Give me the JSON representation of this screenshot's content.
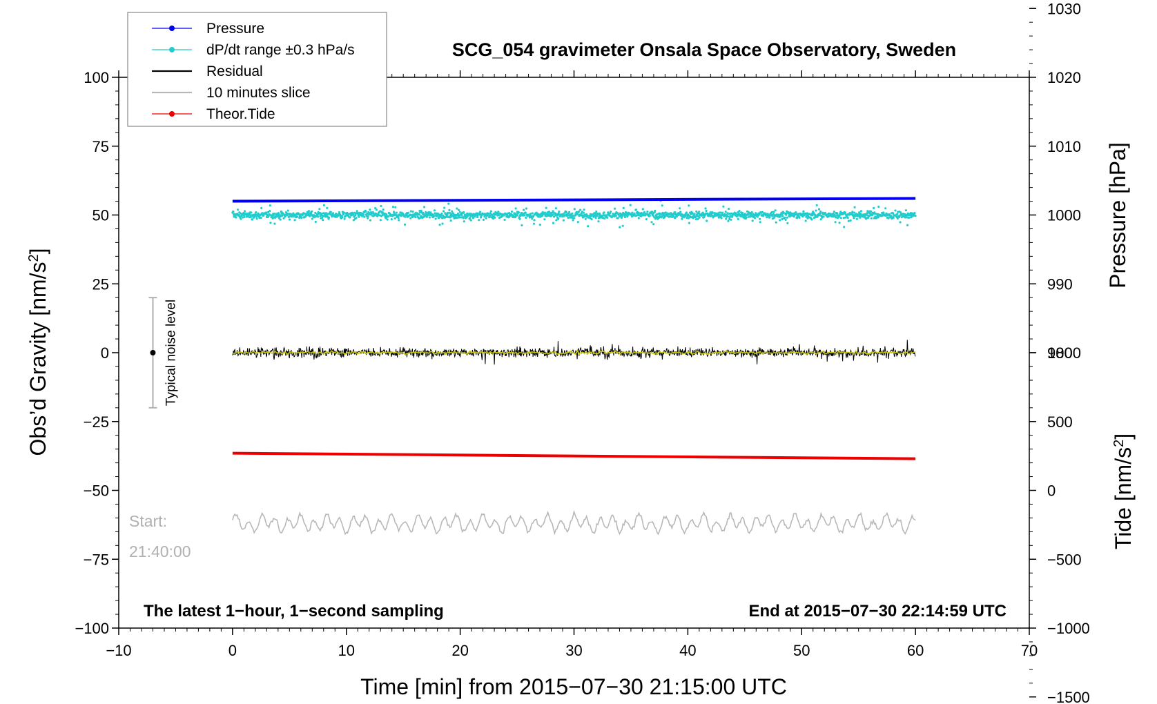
{
  "chart_data": {
    "type": "line",
    "title": "SCG_054 gravimeter Onsala Space Observatory, Sweden",
    "xlabel": "Time [min] from 2015−07−30 21:15:00 UTC",
    "ylabel_left": "Obs’d Gravity [nm/s²]",
    "ylabel_right_top": "Pressure [hPa]",
    "ylabel_right_bottom": "Tide [nm/s²]",
    "xlim": [
      -10,
      70
    ],
    "ylim_left": [
      -100,
      100
    ],
    "x_ticks": [
      "−10",
      "0",
      "10",
      "20",
      "30",
      "40",
      "50",
      "60",
      "70"
    ],
    "x_tick_values": [
      -10,
      0,
      10,
      20,
      30,
      40,
      50,
      60,
      70
    ],
    "y_left_ticks": [
      "100",
      "75",
      "50",
      "25",
      "0",
      "−25",
      "−50",
      "−75",
      "−100"
    ],
    "y_left_tick_values": [
      100,
      75,
      50,
      25,
      0,
      -25,
      -50,
      -75,
      -100
    ],
    "pressure_axis": {
      "ticks": [
        "1030",
        "1020",
        "1010",
        "1000",
        "990",
        "980"
      ],
      "tick_values": [
        1030,
        1020,
        1010,
        1000,
        990,
        980
      ],
      "left_value_at_1000": 50,
      "left_units_per_hPa": 2.5
    },
    "tide_axis": {
      "ticks": [
        "1000",
        "500",
        "0",
        "−500",
        "−1000",
        "−1500"
      ],
      "tick_values": [
        1000,
        500,
        0,
        -500,
        -1000,
        -1500
      ],
      "left_value_at_0": -50,
      "left_units_per_nms2": 0.05
    },
    "legend": {
      "position": "top-left",
      "items": [
        {
          "label": "Pressure",
          "color": "#0000ee",
          "style": "line-dot"
        },
        {
          "label": "dP/dt range ±0.3 hPa/s",
          "color": "#22cccc",
          "style": "line-dot"
        },
        {
          "label": "Residual",
          "color": "#000000",
          "style": "line"
        },
        {
          "label": "10 minutes slice",
          "color": "#b8b8b8",
          "style": "line"
        },
        {
          "label": "Theor.Tide",
          "color": "#ee0000",
          "style": "line-dot"
        }
      ]
    },
    "series": [
      {
        "name": "Pressure",
        "color": "#0000ee",
        "x_range": [
          0,
          60
        ],
        "y_left_range": [
          55.0,
          56.0
        ],
        "pressure_hPa": [
          1002.0,
          1002.4
        ]
      },
      {
        "name": "dP/dt range ±0.3 hPa/s",
        "color": "#22cccc",
        "x_range": [
          0,
          60
        ],
        "y_left_center": 50,
        "y_left_spread": 4
      },
      {
        "name": "Residual",
        "color": "#000000",
        "x_range": [
          0,
          60
        ],
        "y_left_center": 0,
        "y_left_spread": 3
      },
      {
        "name": "Residual (smoothed)",
        "color": "#c8c800",
        "x_range": [
          0,
          60
        ],
        "y_left_center": 0
      },
      {
        "name": "Theor.Tide",
        "color": "#ee0000",
        "x_range": [
          0,
          60
        ],
        "y_left_range": [
          -36.5,
          -38.5
        ],
        "tide_nms2": [
          270,
          230
        ]
      },
      {
        "name": "10 minutes slice",
        "color": "#b8b8b8",
        "x_range": [
          0,
          60
        ],
        "y_left_center": -62,
        "y_left_spread": 4
      }
    ],
    "noise_bar": {
      "label": "Typical noise level",
      "x": -7,
      "y_center": 0,
      "y_low": -20,
      "y_high": 20,
      "color": "#b0b0b0"
    },
    "start_label": [
      "Start:",
      "21:40:00"
    ],
    "footer_left": "The latest 1−hour, 1−second sampling",
    "footer_right": "End at 2015−07−30 22:14:59 UTC"
  }
}
